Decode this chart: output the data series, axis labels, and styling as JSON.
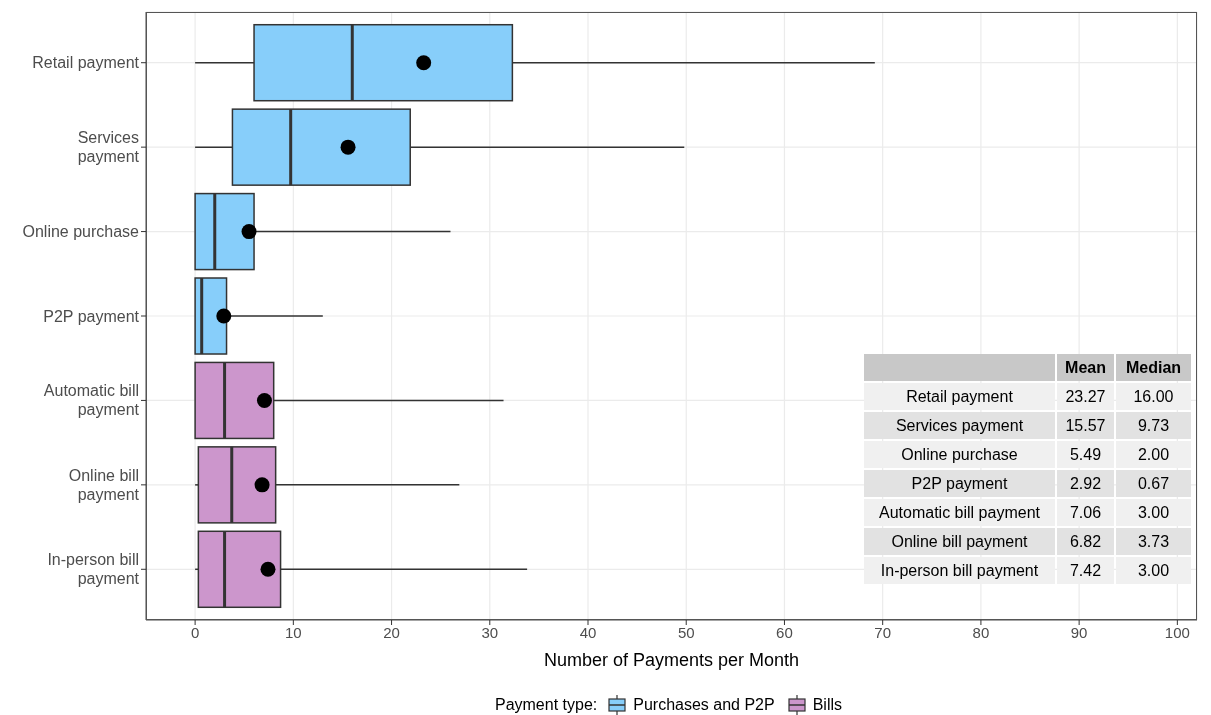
{
  "chart_data": [
    {
      "type": "box",
      "orientation": "horizontal",
      "xlabel": "Number of Payments per Month",
      "legend_title": "Payment type:",
      "categories": [
        "Retail payment",
        "Services payment",
        "Online purchase",
        "P2P payment",
        "Automatic bill payment",
        "Online bill payment",
        "In-person bill payment"
      ],
      "series": [
        {
          "name": "Purchases and P2P",
          "color": "#87cefa",
          "boxes": [
            {
              "low": 0,
              "q1": 6,
              "median": 16,
              "q3": 32.3,
              "high": 69.2,
              "mean": 23.27
            },
            {
              "low": 0,
              "q1": 3.8,
              "median": 9.73,
              "q3": 21.9,
              "high": 49.8,
              "mean": 15.57
            },
            {
              "low": 0,
              "q1": 0,
              "median": 2,
              "q3": 6,
              "high": 26,
              "mean": 5.49
            },
            {
              "low": 0,
              "q1": 0,
              "median": 0.67,
              "q3": 3.2,
              "high": 13,
              "mean": 2.92
            },
            null,
            null,
            null
          ]
        },
        {
          "name": "Bills",
          "color": "#cc96cc",
          "boxes": [
            null,
            null,
            null,
            null,
            {
              "low": 0,
              "q1": 0,
              "median": 3,
              "q3": 8,
              "high": 31.4,
              "mean": 7.06
            },
            {
              "low": 0,
              "q1": 0.33,
              "median": 3.73,
              "q3": 8.2,
              "high": 26.9,
              "mean": 6.82
            },
            {
              "low": 0,
              "q1": 0.33,
              "median": 3,
              "q3": 8.7,
              "high": 33.8,
              "mean": 7.42
            }
          ]
        }
      ],
      "xlim": [
        -5,
        102
      ],
      "xticks": [
        0,
        10,
        20,
        30,
        40,
        50,
        60,
        70,
        80,
        90,
        100
      ],
      "grid": true,
      "legend": "bottom",
      "marker": "circle"
    },
    {
      "type": "other",
      "categories": [
        "Retail payment",
        "Services payment",
        "Online purchase",
        "P2P payment",
        "Automatic bill payment",
        "Online bill payment",
        "In-person bill payment"
      ],
      "series": [
        {
          "name": "Mean",
          "colors": [
            "#f0f0f0",
            "#e2e2e2",
            "#f0f0f0",
            "#e2e2e2",
            "#f0f0f0",
            "#e2e2e2",
            "#f0f0f0"
          ],
          "values": [
            23.27,
            15.57,
            5.49,
            2.92,
            7.06,
            6.82,
            7.42
          ]
        },
        {
          "name": "Median",
          "colors": [
            "#f0f0f0",
            "#e2e2e2",
            "#f0f0f0",
            "#e2e2e2",
            "#f0f0f0",
            "#e2e2e2",
            "#f0f0f0"
          ],
          "values": [
            16,
            9.73,
            2,
            0.67,
            3,
            3.73,
            3
          ],
          "value_labels": [
            "16.00",
            "9.73",
            "2.00",
            "0.67",
            "3.00",
            "3.73",
            "3.00"
          ]
        }
      ],
      "data_labels": true
    }
  ]
}
